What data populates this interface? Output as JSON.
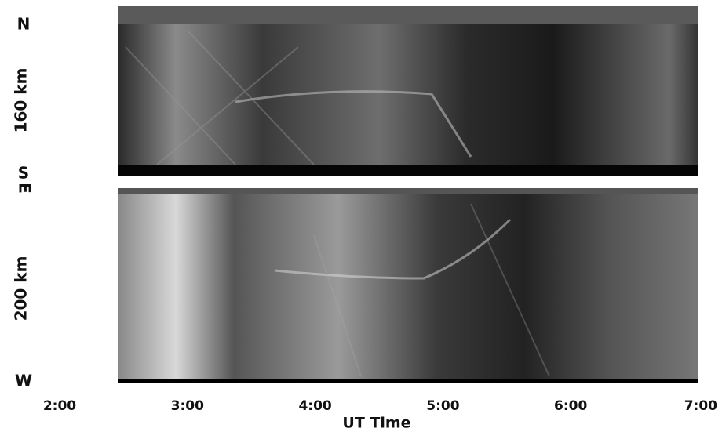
{
  "figure": {
    "panels": [
      {
        "top_label": "N",
        "bottom_label": "S",
        "altitude_label": "160 km"
      },
      {
        "top_label": "E",
        "bottom_label": "W",
        "altitude_label": "200 km"
      }
    ],
    "x_axis": {
      "ticks": [
        "2:00",
        "3:00",
        "4:00",
        "5:00",
        "6:00",
        "7:00"
      ],
      "title": "UT Time"
    }
  }
}
